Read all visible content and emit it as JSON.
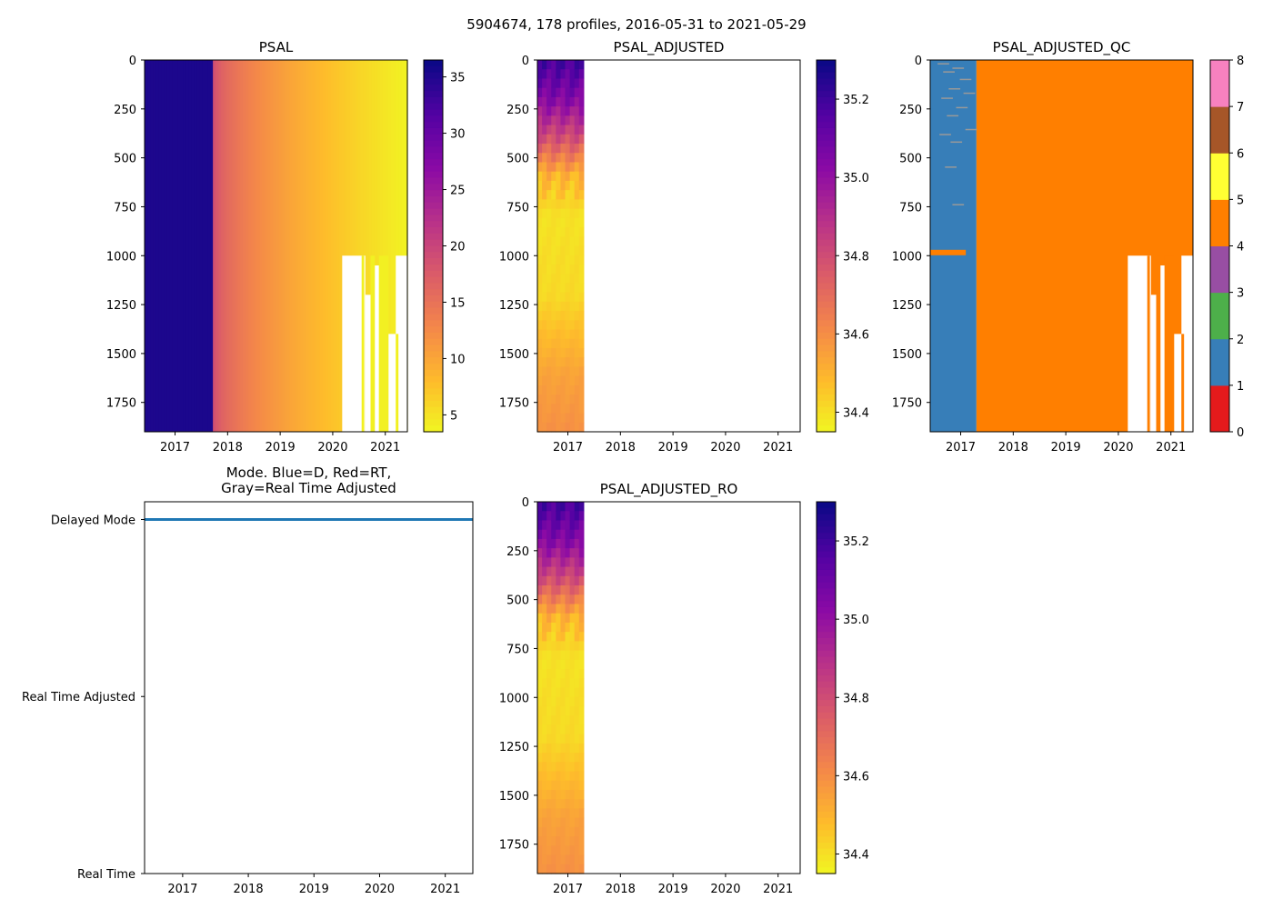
{
  "suptitle": "5904674, 178 profiles, 2016-05-31 to 2021-05-29",
  "chart_data": [
    {
      "type": "heatmap",
      "title": "PSAL",
      "x_ticks": [
        "2017",
        "2018",
        "2019",
        "2020",
        "2021"
      ],
      "x_tick_values": [
        2017,
        2018,
        2019,
        2020,
        2021
      ],
      "xlim": [
        2016.42,
        2021.42
      ],
      "y_ticks": [
        "0",
        "250",
        "500",
        "750",
        "1000",
        "1250",
        "1500",
        "1750"
      ],
      "y_tick_values": [
        0,
        250,
        500,
        750,
        1000,
        1250,
        1500,
        1750
      ],
      "ylim": [
        0,
        1900
      ],
      "y_inverted": true,
      "colormap": "plasma_r",
      "colorbar_ticks": [
        "5",
        "10",
        "15",
        "20",
        "25",
        "30",
        "35"
      ],
      "colorbar_tick_values": [
        5,
        10,
        15,
        20,
        25,
        30,
        35
      ],
      "colorbar_range": [
        3.5,
        36.5
      ],
      "segments": [
        {
          "x_start": 2016.42,
          "x_end": 2017.72,
          "value_start": 35.4,
          "value_end": 35.6
        },
        {
          "x_start": 2017.72,
          "x_end": 2021.42,
          "value_start": 20.0,
          "value_end": 4.0
        }
      ],
      "missing_region_note": "white gaps below ~1000 dbar after 2020.2"
    },
    {
      "type": "heatmap",
      "title": "PSAL_ADJUSTED",
      "x_ticks": [
        "2017",
        "2018",
        "2019",
        "2020",
        "2021"
      ],
      "x_tick_values": [
        2017,
        2018,
        2019,
        2020,
        2021
      ],
      "xlim": [
        2016.42,
        2021.42
      ],
      "y_ticks": [
        "0",
        "250",
        "500",
        "750",
        "1000",
        "1250",
        "1500",
        "1750"
      ],
      "y_tick_values": [
        0,
        250,
        500,
        750,
        1000,
        1250,
        1500,
        1750
      ],
      "ylim": [
        0,
        1900
      ],
      "y_inverted": true,
      "colormap": "plasma_r",
      "colorbar_ticks": [
        "34.4",
        "34.6",
        "34.8",
        "35.0",
        "35.2"
      ],
      "colorbar_tick_values": [
        34.4,
        34.6,
        34.8,
        35.0,
        35.2
      ],
      "colorbar_range": [
        34.35,
        35.3
      ],
      "data_x_range": [
        2016.42,
        2017.3
      ],
      "depth_profile": [
        {
          "depth": 0,
          "value": 35.2
        },
        {
          "depth": 200,
          "value": 35.05
        },
        {
          "depth": 400,
          "value": 34.8
        },
        {
          "depth": 600,
          "value": 34.5
        },
        {
          "depth": 800,
          "value": 34.4
        },
        {
          "depth": 1200,
          "value": 34.42
        },
        {
          "depth": 1600,
          "value": 34.55
        },
        {
          "depth": 1900,
          "value": 34.6
        }
      ]
    },
    {
      "type": "heatmap",
      "title": "PSAL_ADJUSTED_QC",
      "x_ticks": [
        "2017",
        "2018",
        "2019",
        "2020",
        "2021"
      ],
      "x_tick_values": [
        2017,
        2018,
        2019,
        2020,
        2021
      ],
      "xlim": [
        2016.42,
        2021.42
      ],
      "y_ticks": [
        "0",
        "250",
        "500",
        "750",
        "1000",
        "1250",
        "1500",
        "1750"
      ],
      "y_tick_values": [
        0,
        250,
        500,
        750,
        1000,
        1250,
        1500,
        1750
      ],
      "ylim": [
        0,
        1900
      ],
      "y_inverted": true,
      "colormap": "Set1 (categorical)",
      "colorbar_ticks": [
        "0",
        "1",
        "2",
        "3",
        "4",
        "5",
        "6",
        "7",
        "8"
      ],
      "colorbar_tick_values": [
        0,
        1,
        2,
        3,
        4,
        5,
        6,
        7,
        8
      ],
      "category_colors": [
        "#e41a1c",
        "#377eb8",
        "#4daf4a",
        "#984ea3",
        "#ff7f00",
        "#ffff33",
        "#a65628",
        "#f781bf",
        "#999999"
      ],
      "segments": [
        {
          "x_start": 2016.42,
          "x_end": 2017.3,
          "qc": 1
        },
        {
          "x_start": 2017.3,
          "x_end": 2021.42,
          "qc": 4
        }
      ],
      "missing_region_note": "white gaps below ~1000 dbar after 2020.2"
    },
    {
      "type": "line",
      "title": "Mode. Blue=D, Red=RT,",
      "title_line2": "Gray=Real Time Adjusted",
      "x_ticks": [
        "2017",
        "2018",
        "2019",
        "2020",
        "2021"
      ],
      "x_tick_values": [
        2017,
        2018,
        2019,
        2020,
        2021
      ],
      "xlim": [
        2016.42,
        2021.42
      ],
      "y_ticks": [
        "Delayed Mode",
        "Real Time Adjusted",
        "Real Time"
      ],
      "y_tick_values": [
        2,
        1,
        0
      ],
      "ylim": [
        0,
        2.1
      ],
      "series": [
        {
          "name": "Delayed Mode",
          "color": "#1f77b4",
          "y": 2,
          "x_start": 2016.42,
          "x_end": 2021.42
        }
      ]
    },
    {
      "type": "heatmap",
      "title": "PSAL_ADJUSTED_RO",
      "x_ticks": [
        "2017",
        "2018",
        "2019",
        "2020",
        "2021"
      ],
      "x_tick_values": [
        2017,
        2018,
        2019,
        2020,
        2021
      ],
      "xlim": [
        2016.42,
        2021.42
      ],
      "y_ticks": [
        "0",
        "250",
        "500",
        "750",
        "1000",
        "1250",
        "1500",
        "1750"
      ],
      "y_tick_values": [
        0,
        250,
        500,
        750,
        1000,
        1250,
        1500,
        1750
      ],
      "ylim": [
        0,
        1900
      ],
      "y_inverted": true,
      "colormap": "plasma_r",
      "colorbar_ticks": [
        "34.4",
        "34.6",
        "34.8",
        "35.0",
        "35.2"
      ],
      "colorbar_tick_values": [
        34.4,
        34.6,
        34.8,
        35.0,
        35.2
      ],
      "colorbar_range": [
        34.35,
        35.3
      ],
      "data_x_range": [
        2016.42,
        2017.3
      ],
      "depth_profile": [
        {
          "depth": 0,
          "value": 35.2
        },
        {
          "depth": 200,
          "value": 35.05
        },
        {
          "depth": 400,
          "value": 34.8
        },
        {
          "depth": 600,
          "value": 34.5
        },
        {
          "depth": 800,
          "value": 34.4
        },
        {
          "depth": 1200,
          "value": 34.42
        },
        {
          "depth": 1600,
          "value": 34.55
        },
        {
          "depth": 1900,
          "value": 34.6
        }
      ]
    }
  ]
}
